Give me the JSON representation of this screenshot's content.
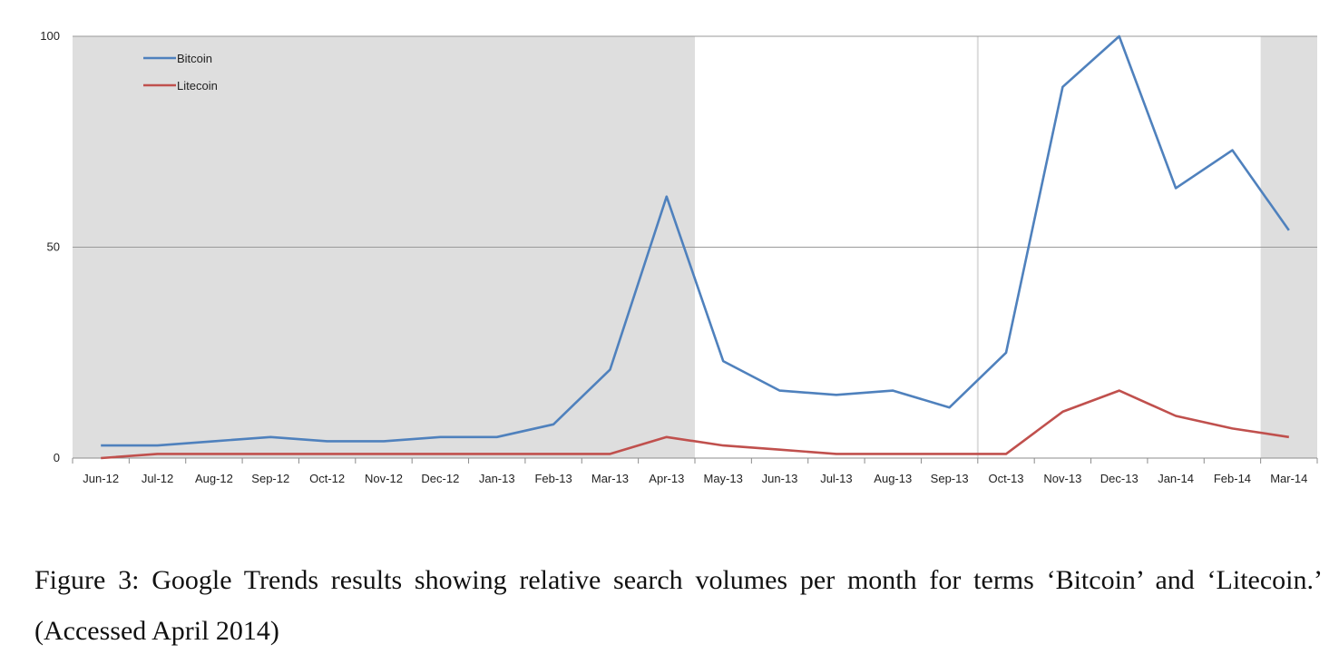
{
  "chart_data": {
    "type": "line",
    "categories": [
      "Jun-12",
      "Jul-12",
      "Aug-12",
      "Sep-12",
      "Oct-12",
      "Nov-12",
      "Dec-12",
      "Jan-13",
      "Feb-13",
      "Mar-13",
      "Apr-13",
      "May-13",
      "Jun-13",
      "Jul-13",
      "Aug-13",
      "Sep-13",
      "Oct-13",
      "Nov-13",
      "Dec-13",
      "Jan-14",
      "Feb-14",
      "Mar-14"
    ],
    "series": [
      {
        "name": "Bitcoin",
        "color": "#4f81bd",
        "values": [
          3,
          3,
          4,
          5,
          4,
          4,
          5,
          5,
          8,
          21,
          62,
          23,
          16,
          15,
          16,
          12,
          25,
          88,
          100,
          64,
          73,
          54
        ]
      },
      {
        "name": "Litecoin",
        "color": "#c0504d",
        "values": [
          0,
          1,
          1,
          1,
          1,
          1,
          1,
          1,
          1,
          1,
          5,
          3,
          2,
          1,
          1,
          1,
          1,
          11,
          16,
          10,
          7,
          5
        ]
      }
    ],
    "yticks": [
      "0",
      "50",
      "100"
    ],
    "ylim": [
      0,
      100
    ],
    "grid": true,
    "legend_position": "top-left",
    "shaded_ranges": [
      [
        "Jun-12",
        "Apr-13"
      ],
      [
        "Mar-14",
        "Mar-14"
      ]
    ],
    "shade_color": "#dedede",
    "title": "",
    "xlabel": "",
    "ylabel": ""
  },
  "caption": "Figure 3: Google Trends results showing relative search volumes per month for terms ‘Bitcoin’ and ‘Litecoin.’ (Accessed April 2014)"
}
